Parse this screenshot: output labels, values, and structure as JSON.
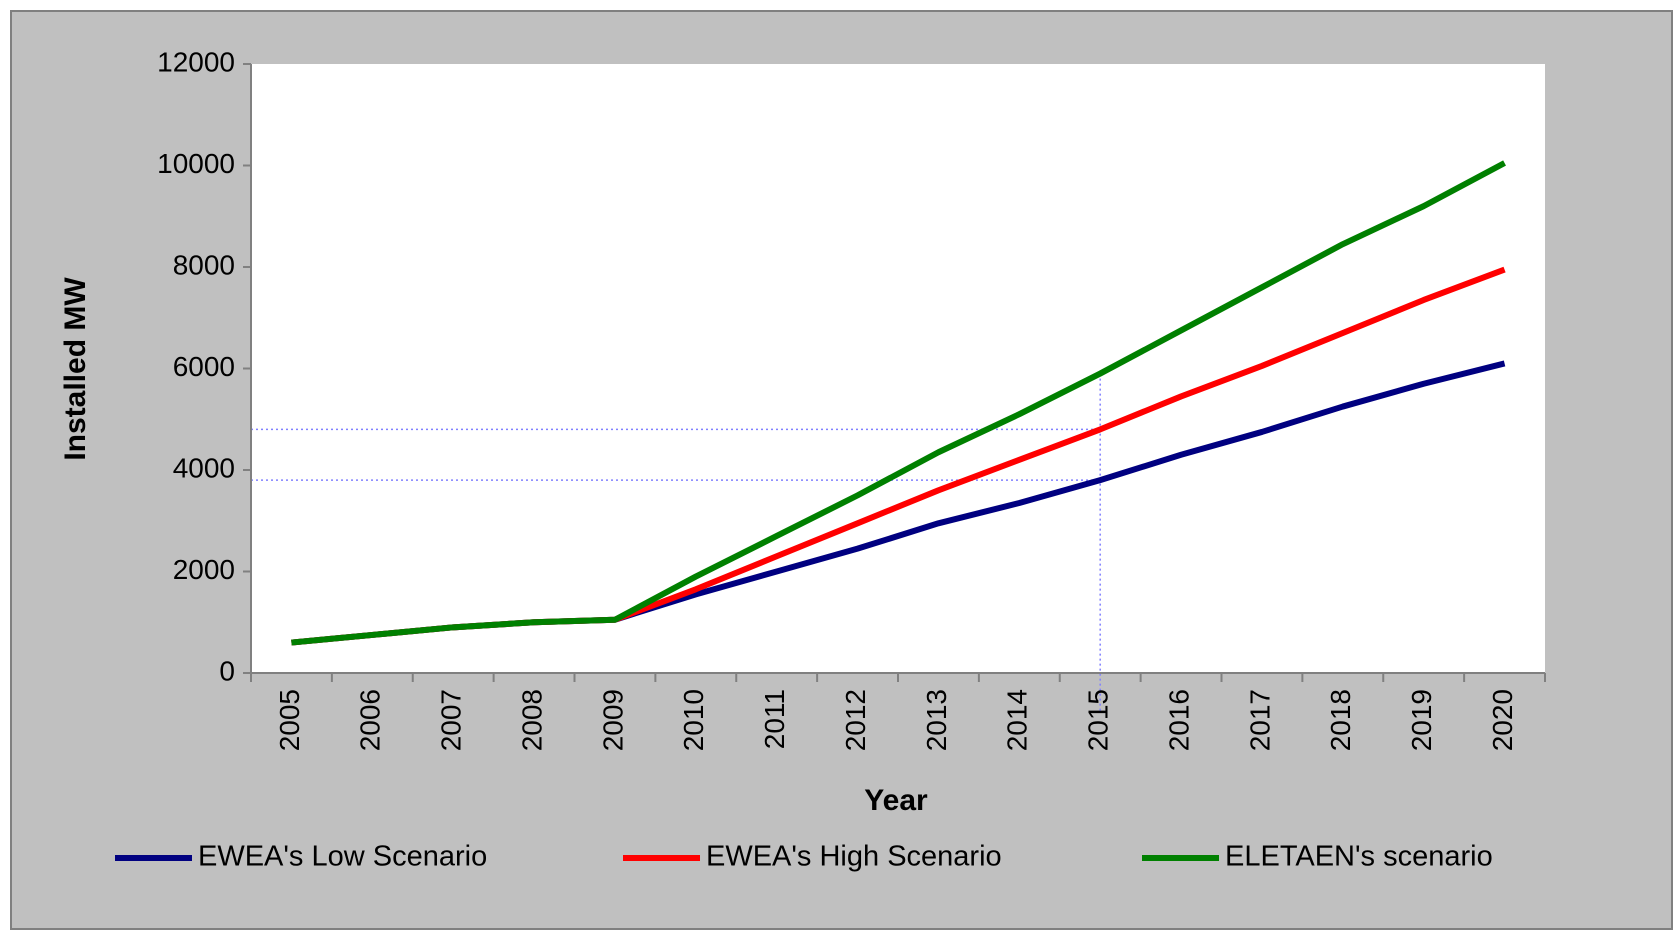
{
  "chart_data": {
    "type": "line",
    "x_label": "Year",
    "y_label": "Installed MW",
    "categories": [
      "2005",
      "2006",
      "2007",
      "2008",
      "2009",
      "2010",
      "2011",
      "2012",
      "2013",
      "2014",
      "2015",
      "2016",
      "2017",
      "2018",
      "2019",
      "2020"
    ],
    "series": [
      {
        "name": "EWEA's Low Scenario",
        "color": "#000080",
        "values": [
          600,
          750,
          900,
          1000,
          1050,
          1550,
          2000,
          2450,
          2950,
          3350,
          3800,
          4300,
          4750,
          5250,
          5700,
          6100
        ]
      },
      {
        "name": "EWEA's High Scenario",
        "color": "#ff0000",
        "values": [
          600,
          750,
          900,
          1000,
          1050,
          1650,
          2300,
          2950,
          3600,
          4200,
          4800,
          5450,
          6050,
          6700,
          7350,
          7950
        ]
      },
      {
        "name": "ELETAEN's scenario",
        "color": "#008000",
        "values": [
          600,
          750,
          900,
          1000,
          1050,
          1900,
          2700,
          3500,
          4350,
          5100,
          5900,
          6750,
          7600,
          8450,
          9200,
          10050
        ]
      }
    ],
    "ylim": [
      0,
      12000
    ],
    "yticks": [
      0,
      2000,
      4000,
      6000,
      8000,
      10000,
      12000
    ],
    "grid": false,
    "legend": "bottom"
  }
}
